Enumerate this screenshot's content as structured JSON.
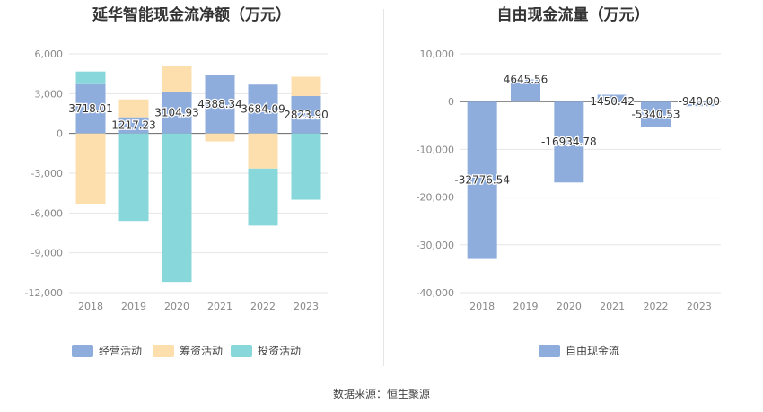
{
  "source": "数据来源：恒生聚源",
  "chart_data": [
    {
      "type": "bar",
      "stacked": true,
      "title": "延华智能现金流净额（万元）",
      "categories": [
        "2018",
        "2019",
        "2020",
        "2021",
        "2022",
        "2023"
      ],
      "ylim": [
        -12000,
        6000
      ],
      "yticks": [
        6000,
        3000,
        0,
        -3000,
        -6000,
        -9000,
        -12000
      ],
      "ytick_labels": [
        "6,000",
        "3,000",
        "0",
        "-3,000",
        "-6,000",
        "-9,000",
        "-12,000"
      ],
      "grid": true,
      "legend_position": "bottom",
      "series": [
        {
          "name": "经营活动",
          "color": "#8eaddc",
          "values": [
            3718.01,
            1217.23,
            3104.93,
            4388.34,
            3684.09,
            2823.9
          ],
          "labels": [
            "3718.01",
            "1217.23",
            "3104.93",
            "4388.34",
            "3684.09",
            "2823.90"
          ]
        },
        {
          "name": "筹资活动",
          "color": "#fddfae",
          "values": [
            -5300,
            1350,
            2000,
            -600,
            -2650,
            1450
          ]
        },
        {
          "name": "投资活动",
          "color": "#88d8db",
          "values": [
            950,
            -6600,
            -11200,
            0,
            -4300,
            -5000
          ]
        }
      ]
    },
    {
      "type": "bar",
      "title": "自由现金流量（万元）",
      "categories": [
        "2018",
        "2019",
        "2020",
        "2021",
        "2022",
        "2023"
      ],
      "ylim": [
        -40000,
        10000
      ],
      "yticks": [
        10000,
        0,
        -10000,
        -20000,
        -30000,
        -40000
      ],
      "ytick_labels": [
        "10,000",
        "0",
        "-10,000",
        "-20,000",
        "-30,000",
        "-40,000"
      ],
      "grid": true,
      "legend_position": "bottom",
      "series": [
        {
          "name": "自由现金流",
          "color": "#8eaddc",
          "values": [
            -32776.54,
            4645.56,
            -16934.78,
            1450.42,
            -5340.53,
            -940.0
          ],
          "labels": [
            "-32776.54",
            "4645.56",
            "-16934.78",
            "1450.42",
            "-5340.53",
            "-940.00"
          ]
        }
      ]
    }
  ]
}
